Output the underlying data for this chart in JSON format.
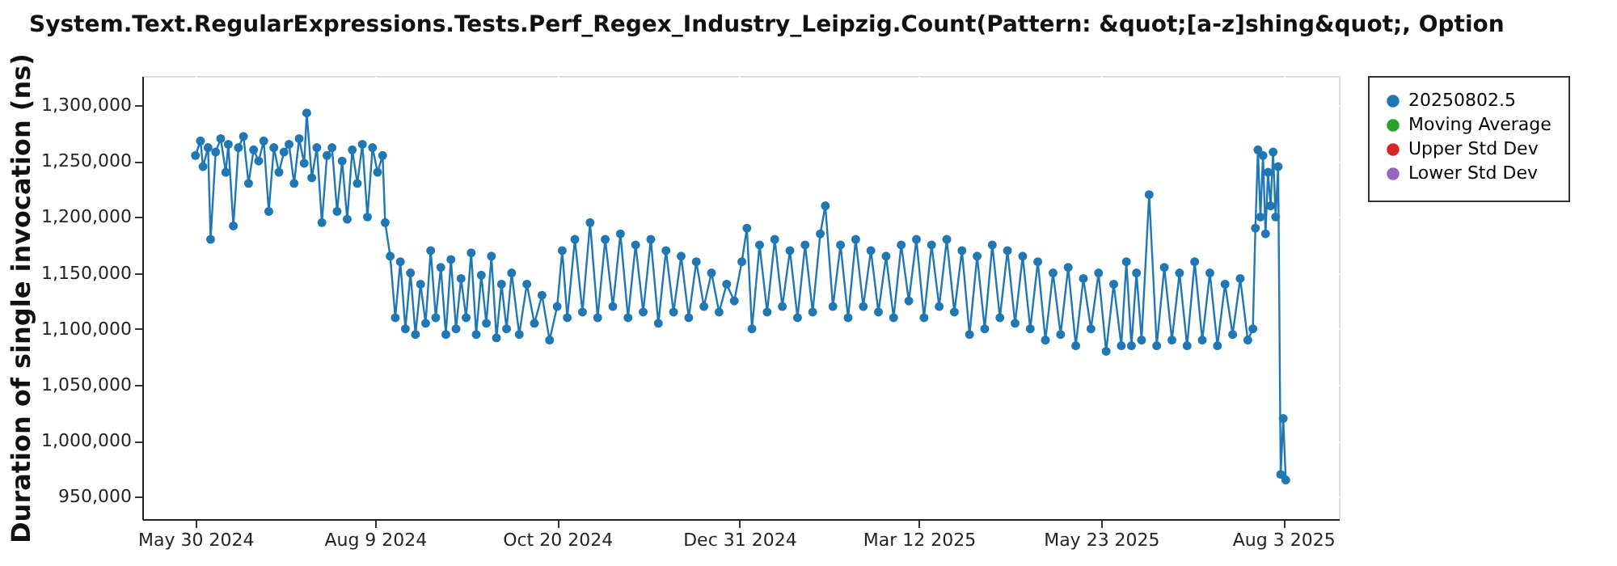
{
  "chart_data": {
    "type": "line",
    "title": "System.Text.RegularExpressions.Tests.Perf_Regex_Industry_Leipzig.Count(Pattern: &quot;[a-z]shing&quot;, Option",
    "ylabel": "Duration of single invocation (ns)",
    "xlim": [
      "2024-05-09",
      "2025-08-25"
    ],
    "xticks": [
      {
        "value": "2024-05-30",
        "label": "May 30 2024"
      },
      {
        "value": "2024-08-09",
        "label": "Aug 9 2024"
      },
      {
        "value": "2024-10-20",
        "label": "Oct 20 2024"
      },
      {
        "value": "2024-12-31",
        "label": "Dec 31 2024"
      },
      {
        "value": "2025-03-12",
        "label": "Mar 12 2025"
      },
      {
        "value": "2025-05-23",
        "label": "May 23 2025"
      },
      {
        "value": "2025-08-03",
        "label": "Aug 3 2025"
      }
    ],
    "ylim": [
      930000,
      1326000
    ],
    "yticks": [
      {
        "value": 950000,
        "label": "950,000"
      },
      {
        "value": 1000000,
        "label": "1,000,000"
      },
      {
        "value": 1050000,
        "label": "1,050,000"
      },
      {
        "value": 1100000,
        "label": "1,100,000"
      },
      {
        "value": 1150000,
        "label": "1,150,000"
      },
      {
        "value": 1200000,
        "label": "1,200,000"
      },
      {
        "value": 1250000,
        "label": "1,250,000"
      },
      {
        "value": 1300000,
        "label": "1,300,000"
      }
    ],
    "x": [
      "2024-05-30",
      "2024-06-01",
      "2024-06-02",
      "2024-06-04",
      "2024-06-05",
      "2024-06-07",
      "2024-06-09",
      "2024-06-11",
      "2024-06-12",
      "2024-06-14",
      "2024-06-16",
      "2024-06-18",
      "2024-06-20",
      "2024-06-22",
      "2024-06-24",
      "2024-06-26",
      "2024-06-28",
      "2024-06-30",
      "2024-07-02",
      "2024-07-04",
      "2024-07-06",
      "2024-07-08",
      "2024-07-10",
      "2024-07-12",
      "2024-07-13",
      "2024-07-15",
      "2024-07-17",
      "2024-07-19",
      "2024-07-21",
      "2024-07-23",
      "2024-07-25",
      "2024-07-27",
      "2024-07-29",
      "2024-07-31",
      "2024-08-02",
      "2024-08-04",
      "2024-08-06",
      "2024-08-08",
      "2024-08-10",
      "2024-08-12",
      "2024-08-13",
      "2024-08-15",
      "2024-08-17",
      "2024-08-19",
      "2024-08-21",
      "2024-08-23",
      "2024-08-25",
      "2024-08-27",
      "2024-08-29",
      "2024-08-31",
      "2024-09-02",
      "2024-09-04",
      "2024-09-06",
      "2024-09-08",
      "2024-09-10",
      "2024-09-12",
      "2024-09-14",
      "2024-09-16",
      "2024-09-18",
      "2024-09-20",
      "2024-09-22",
      "2024-09-24",
      "2024-09-26",
      "2024-09-28",
      "2024-09-30",
      "2024-10-02",
      "2024-10-05",
      "2024-10-08",
      "2024-10-11",
      "2024-10-14",
      "2024-10-17",
      "2024-10-20",
      "2024-10-22",
      "2024-10-24",
      "2024-10-27",
      "2024-10-30",
      "2024-11-02",
      "2024-11-05",
      "2024-11-08",
      "2024-11-11",
      "2024-11-14",
      "2024-11-17",
      "2024-11-20",
      "2024-11-23",
      "2024-11-26",
      "2024-11-29",
      "2024-12-02",
      "2024-12-05",
      "2024-12-08",
      "2024-12-11",
      "2024-12-14",
      "2024-12-17",
      "2024-12-20",
      "2024-12-23",
      "2024-12-26",
      "2024-12-29",
      "2025-01-01",
      "2025-01-03",
      "2025-01-05",
      "2025-01-08",
      "2025-01-11",
      "2025-01-14",
      "2025-01-17",
      "2025-01-20",
      "2025-01-23",
      "2025-01-26",
      "2025-01-29",
      "2025-02-01",
      "2025-02-03",
      "2025-02-06",
      "2025-02-09",
      "2025-02-12",
      "2025-02-15",
      "2025-02-18",
      "2025-02-21",
      "2025-02-24",
      "2025-02-27",
      "2025-03-02",
      "2025-03-05",
      "2025-03-08",
      "2025-03-11",
      "2025-03-14",
      "2025-03-17",
      "2025-03-20",
      "2025-03-23",
      "2025-03-26",
      "2025-03-29",
      "2025-04-01",
      "2025-04-04",
      "2025-04-07",
      "2025-04-10",
      "2025-04-13",
      "2025-04-16",
      "2025-04-19",
      "2025-04-22",
      "2025-04-25",
      "2025-04-28",
      "2025-05-01",
      "2025-05-04",
      "2025-05-07",
      "2025-05-10",
      "2025-05-13",
      "2025-05-16",
      "2025-05-19",
      "2025-05-22",
      "2025-05-25",
      "2025-05-28",
      "2025-05-31",
      "2025-06-02",
      "2025-06-04",
      "2025-06-06",
      "2025-06-08",
      "2025-06-11",
      "2025-06-14",
      "2025-06-17",
      "2025-06-20",
      "2025-06-23",
      "2025-06-26",
      "2025-06-29",
      "2025-07-02",
      "2025-07-05",
      "2025-07-08",
      "2025-07-11",
      "2025-07-14",
      "2025-07-17",
      "2025-07-20",
      "2025-07-22",
      "2025-07-23",
      "2025-07-24",
      "2025-07-25",
      "2025-07-26",
      "2025-07-27",
      "2025-07-28",
      "2025-07-29",
      "2025-07-30",
      "2025-07-31",
      "2025-08-01",
      "2025-08-02",
      "2025-08-03",
      "2025-08-04"
    ],
    "series": [
      {
        "name": "20250802.5",
        "color": "#1f77b4",
        "values": [
          1255000,
          1268000,
          1245000,
          1262000,
          1180000,
          1258000,
          1270000,
          1240000,
          1265000,
          1192000,
          1262000,
          1272000,
          1230000,
          1260000,
          1250000,
          1268000,
          1205000,
          1262000,
          1240000,
          1258000,
          1265000,
          1230000,
          1270000,
          1248000,
          1293000,
          1235000,
          1262000,
          1195000,
          1255000,
          1262000,
          1205000,
          1250000,
          1198000,
          1260000,
          1230000,
          1265000,
          1200000,
          1262000,
          1240000,
          1255000,
          1195000,
          1165000,
          1110000,
          1160000,
          1100000,
          1150000,
          1095000,
          1140000,
          1105000,
          1170000,
          1110000,
          1155000,
          1095000,
          1162000,
          1100000,
          1145000,
          1110000,
          1168000,
          1095000,
          1148000,
          1105000,
          1165000,
          1092000,
          1140000,
          1100000,
          1150000,
          1095000,
          1140000,
          1105000,
          1130000,
          1090000,
          1120000,
          1170000,
          1110000,
          1180000,
          1115000,
          1195000,
          1110000,
          1180000,
          1120000,
          1185000,
          1110000,
          1175000,
          1115000,
          1180000,
          1105000,
          1170000,
          1115000,
          1165000,
          1110000,
          1160000,
          1120000,
          1150000,
          1115000,
          1140000,
          1125000,
          1160000,
          1190000,
          1100000,
          1175000,
          1115000,
          1180000,
          1120000,
          1170000,
          1110000,
          1175000,
          1115000,
          1185000,
          1210000,
          1120000,
          1175000,
          1110000,
          1180000,
          1120000,
          1170000,
          1115000,
          1165000,
          1110000,
          1175000,
          1125000,
          1180000,
          1110000,
          1175000,
          1120000,
          1180000,
          1115000,
          1170000,
          1095000,
          1165000,
          1100000,
          1175000,
          1110000,
          1170000,
          1105000,
          1165000,
          1100000,
          1160000,
          1090000,
          1150000,
          1095000,
          1155000,
          1085000,
          1145000,
          1100000,
          1150000,
          1080000,
          1140000,
          1085000,
          1160000,
          1085000,
          1150000,
          1090000,
          1220000,
          1085000,
          1155000,
          1090000,
          1150000,
          1085000,
          1160000,
          1090000,
          1150000,
          1085000,
          1140000,
          1095000,
          1145000,
          1090000,
          1100000,
          1190000,
          1260000,
          1200000,
          1255000,
          1185000,
          1240000,
          1210000,
          1258000,
          1200000,
          1245000,
          970000,
          1020000,
          965000
        ]
      },
      {
        "name": "Moving Average",
        "color": "#2ca02c",
        "values": [
          null,
          null,
          null,
          null,
          null,
          null,
          null,
          null,
          null,
          null,
          null,
          null,
          null,
          null,
          null,
          null,
          null,
          null,
          null,
          null,
          null,
          null,
          null,
          null,
          null,
          null,
          null,
          null,
          null,
          null,
          null,
          null,
          null,
          null,
          null,
          null,
          null,
          null,
          null,
          null,
          null,
          null,
          null,
          null,
          null,
          null,
          null,
          null,
          null,
          null,
          null,
          null,
          null,
          null,
          null,
          null,
          null,
          null,
          null,
          null,
          null,
          null,
          null,
          null,
          null,
          null,
          null,
          null,
          null,
          null,
          null,
          null,
          null,
          null,
          null,
          null,
          null,
          null,
          null,
          null,
          null,
          null,
          null,
          null,
          null,
          null,
          null,
          null,
          null,
          null,
          null,
          null,
          null,
          null,
          null,
          null,
          null,
          null,
          null,
          null,
          null,
          null,
          null,
          null,
          null,
          null,
          null,
          null,
          null,
          null,
          null,
          null,
          null,
          null,
          null,
          null,
          null,
          null,
          null,
          null,
          null,
          null,
          null,
          null,
          null,
          null,
          null,
          null,
          null,
          null,
          null,
          null,
          null,
          null,
          null,
          null,
          null,
          null,
          null,
          null,
          null,
          null,
          null,
          null,
          null,
          null,
          null,
          null,
          null,
          null,
          null,
          null,
          null,
          null,
          null,
          null,
          null,
          null,
          null,
          null,
          null,
          null,
          null,
          null,
          null,
          null,
          null,
          null,
          null,
          null,
          null,
          null,
          null,
          null,
          null,
          null,
          null,
          null,
          null,
          null
        ]
      },
      {
        "name": "Upper Std Dev",
        "color": "#d62728",
        "values": [
          null,
          null,
          null,
          null,
          null,
          null,
          null,
          null,
          null,
          null,
          null,
          null,
          null,
          null,
          null,
          null,
          null,
          null,
          null,
          null,
          null,
          null,
          null,
          null,
          null,
          null,
          null,
          null,
          null,
          null,
          null,
          null,
          null,
          null,
          null,
          null,
          null,
          null,
          null,
          null,
          null,
          null,
          null,
          null,
          null,
          null,
          null,
          null,
          null,
          null,
          null,
          null,
          null,
          null,
          null,
          null,
          null,
          null,
          null,
          null,
          null,
          null,
          null,
          null,
          null,
          null,
          null,
          null,
          null,
          null,
          null,
          null,
          null,
          null,
          null,
          null,
          null,
          null,
          null,
          null,
          null,
          null,
          null,
          null,
          null,
          null,
          null,
          null,
          null,
          null,
          null,
          null,
          null,
          null,
          null,
          null,
          null,
          null,
          null,
          null,
          null,
          null,
          null,
          null,
          null,
          null,
          null,
          null,
          null,
          null,
          null,
          null,
          null,
          null,
          null,
          null,
          null,
          null,
          null,
          null,
          null,
          null,
          null,
          null,
          null,
          null,
          null,
          null,
          null,
          null,
          null,
          null,
          null,
          null,
          null,
          null,
          null,
          null,
          null,
          null,
          null,
          null,
          null,
          null,
          null,
          null,
          null,
          null,
          null,
          null,
          null,
          null,
          null,
          null,
          null,
          null,
          null,
          null,
          null,
          null,
          null,
          null,
          null,
          null,
          null,
          null,
          null,
          null,
          null,
          null,
          null,
          null,
          null,
          null,
          null,
          null,
          null,
          null,
          null,
          null
        ]
      },
      {
        "name": "Lower Std Dev",
        "color": "#9467bd",
        "values": [
          null,
          null,
          null,
          null,
          null,
          null,
          null,
          null,
          null,
          null,
          null,
          null,
          null,
          null,
          null,
          null,
          null,
          null,
          null,
          null,
          null,
          null,
          null,
          null,
          null,
          null,
          null,
          null,
          null,
          null,
          null,
          null,
          null,
          null,
          null,
          null,
          null,
          null,
          null,
          null,
          null,
          null,
          null,
          null,
          null,
          null,
          null,
          null,
          null,
          null,
          null,
          null,
          null,
          null,
          null,
          null,
          null,
          null,
          null,
          null,
          null,
          null,
          null,
          null,
          null,
          null,
          null,
          null,
          null,
          null,
          null,
          null,
          null,
          null,
          null,
          null,
          null,
          null,
          null,
          null,
          null,
          null,
          null,
          null,
          null,
          null,
          null,
          null,
          null,
          null,
          null,
          null,
          null,
          null,
          null,
          null,
          null,
          null,
          null,
          null,
          null,
          null,
          null,
          null,
          null,
          null,
          null,
          null,
          null,
          null,
          null,
          null,
          null,
          null,
          null,
          null,
          null,
          null,
          null,
          null,
          null,
          null,
          null,
          null,
          null,
          null,
          null,
          null,
          null,
          null,
          null,
          null,
          null,
          null,
          null,
          null,
          null,
          null,
          null,
          null,
          null,
          null,
          null,
          null,
          null,
          null,
          null,
          null,
          null,
          null,
          null,
          null,
          null,
          null,
          null,
          null,
          null,
          null,
          null,
          null,
          null,
          null,
          null,
          null,
          null,
          null,
          null,
          null,
          null,
          null,
          null,
          null,
          null,
          null,
          null,
          null,
          null,
          null,
          null,
          null
        ]
      }
    ],
    "grid": true,
    "legend": "right",
    "marker": "circle",
    "line_style": "solid"
  }
}
